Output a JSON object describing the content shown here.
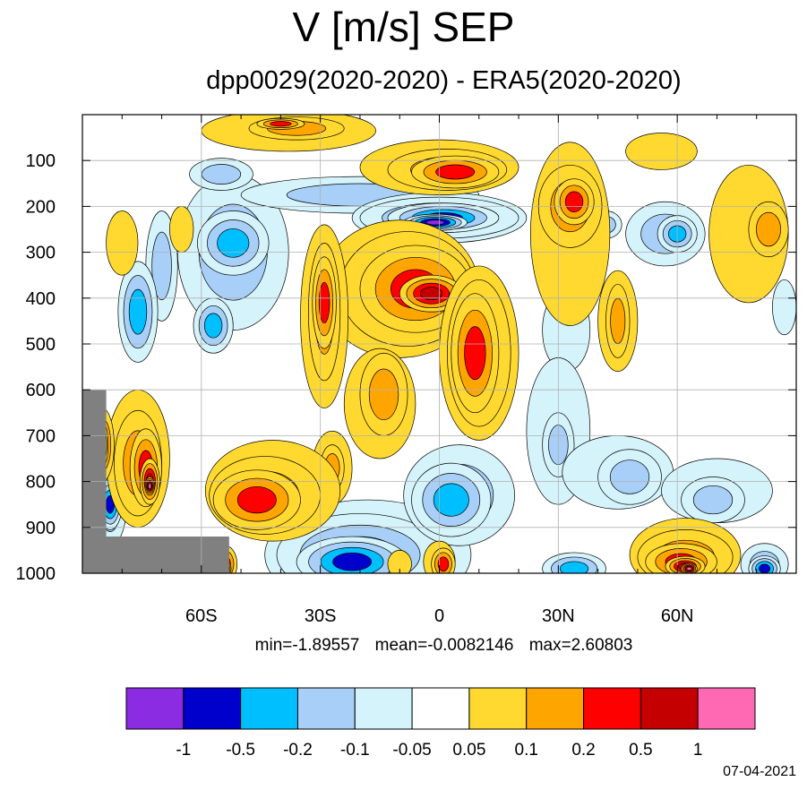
{
  "title": "V [m/s] SEP",
  "subtitle": "dpp0029(2020-2020) - ERA5(2020-2020)",
  "stats": {
    "min": "min=-1.89557",
    "mean": "mean=-0.0082146",
    "max": "max=2.60803"
  },
  "date": "07-04-2021",
  "chart_data": {
    "type": "contour",
    "variable": "V",
    "units": "m/s",
    "x_axis": {
      "range": [
        -90,
        90
      ],
      "tick_values": [
        -60,
        -30,
        0,
        30,
        60
      ],
      "tick_labels": [
        "60S",
        "30S",
        "0",
        "30N",
        "60N"
      ]
    },
    "y_axis": {
      "range": [
        1000,
        0
      ],
      "reversed": true,
      "tick_values": [
        100,
        200,
        300,
        400,
        500,
        600,
        700,
        800,
        900,
        1000
      ],
      "tick_labels": [
        "100",
        "200",
        "300",
        "400",
        "500",
        "600",
        "700",
        "800",
        "900",
        "1000"
      ]
    },
    "grid": true,
    "contour_levels": [
      -1,
      -0.5,
      -0.2,
      -0.1,
      -0.05,
      0.05,
      0.1,
      0.2,
      0.5,
      1
    ],
    "colorbar": {
      "colors": [
        "#8b2be2",
        "#0000cd",
        "#00bfff",
        "#a8cff7",
        "#d5f3fb",
        "#ffffff",
        "#ffd92f",
        "#ffa500",
        "#ff0000",
        "#c40000",
        "#ff69b4"
      ],
      "labels": [
        "-1",
        "-0.5",
        "-0.2",
        "-0.1",
        "-0.05",
        "0.05",
        "0.1",
        "0.2",
        "0.5",
        "1"
      ]
    },
    "missing_color": "#808080",
    "features": [
      {
        "lat": [
          -12,
          18
        ],
        "p": [
          170,
          260
        ],
        "value": -1.0
      },
      {
        "lat": [
          -10,
          8
        ],
        "p": [
          230,
          250
        ],
        "value": -1.9
      },
      {
        "lat": [
          -25,
          15
        ],
        "p": [
          320,
          480
        ],
        "value": 0.6
      },
      {
        "lat": [
          -5,
          12
        ],
        "p": [
          380,
          400
        ],
        "value": 1.0
      },
      {
        "lat": [
          -5,
          12
        ],
        "p": [
          60,
          150
        ],
        "value": 0.6
      },
      {
        "lat": [
          -28,
          -25
        ],
        "p": [
          300,
          580
        ],
        "value": 0.3
      },
      {
        "lat": [
          -60,
          -45
        ],
        "p": [
          180,
          420
        ],
        "value": -0.2
      },
      {
        "lat": [
          -40,
          -50
        ],
        "p": [
          780,
          900
        ],
        "value": 0.4
      },
      {
        "lat": [
          -70,
          -84
        ],
        "p": [
          660,
          820
        ],
        "value": 0.8
      },
      {
        "lat": [
          -30,
          -15
        ],
        "p": [
          880,
          1000
        ],
        "value": -0.6
      },
      {
        "lat": [
          50,
          70
        ],
        "p": [
          900,
          1000
        ],
        "value": 0.8
      },
      {
        "lat": [
          30,
          35
        ],
        "p": [
          150,
          230
        ],
        "value": 0.5
      }
    ]
  }
}
